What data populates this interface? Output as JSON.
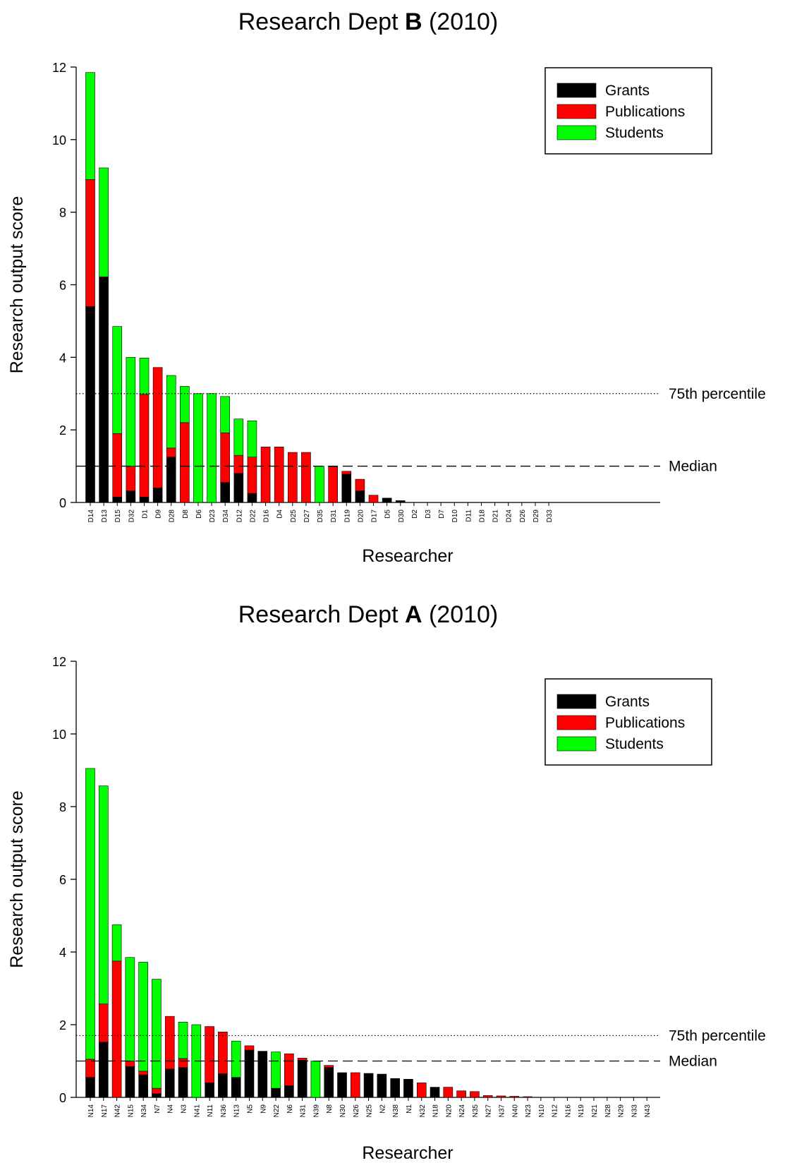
{
  "colors": {
    "grants": "#000000",
    "publications": "#ff0000",
    "students": "#00ff00",
    "background": "#ffffff"
  },
  "chart_data": [
    {
      "type": "bar",
      "stacked": true,
      "title": "Research Dept B (2010)",
      "title_parts": {
        "prefix": "Research Dept ",
        "letter": "B",
        "suffix": " (2010)"
      },
      "xlabel": "Researcher",
      "ylabel": "Research output score",
      "ylim": [
        0,
        12
      ],
      "yticks": [
        0,
        2,
        4,
        6,
        8,
        10,
        12
      ],
      "grid": false,
      "legend_position": "top-right",
      "categories": [
        "D14",
        "D13",
        "D15",
        "D32",
        "D1",
        "D9",
        "D28",
        "D8",
        "D6",
        "D23",
        "D34",
        "D12",
        "D22",
        "D16",
        "D4",
        "D25",
        "D27",
        "D35",
        "D31",
        "D19",
        "D20",
        "D17",
        "D5",
        "D30",
        "D2",
        "D3",
        "D7",
        "D10",
        "D11",
        "D18",
        "D21",
        "D24",
        "D26",
        "D29",
        "D33"
      ],
      "series": [
        {
          "name": "Grants",
          "color_key": "grants",
          "values": [
            5.4,
            6.2,
            0.15,
            0.32,
            0.15,
            0.4,
            1.25,
            0,
            0,
            0,
            0.55,
            0.8,
            0.25,
            0,
            0,
            0,
            0,
            0,
            0,
            0.78,
            0.32,
            0,
            0.12,
            0.05,
            0,
            0,
            0,
            0,
            0,
            0,
            0,
            0,
            0,
            0,
            0
          ]
        },
        {
          "name": "Publications",
          "color_key": "publications",
          "values": [
            3.5,
            0.02,
            1.75,
            0.68,
            2.83,
            3.32,
            0.25,
            2.2,
            0,
            0,
            1.37,
            0.5,
            1.0,
            1.53,
            1.53,
            1.38,
            1.38,
            0,
            0.98,
            0.08,
            0.32,
            0.2,
            0,
            0,
            0,
            0,
            0,
            0,
            0,
            0,
            0,
            0,
            0,
            0,
            0
          ]
        },
        {
          "name": "Students",
          "color_key": "students",
          "values": [
            2.95,
            3.0,
            2.95,
            3.0,
            1.0,
            0,
            2.0,
            1.0,
            3.0,
            3.0,
            1.0,
            1.0,
            1.0,
            0,
            0,
            0,
            0,
            1.0,
            0,
            0,
            0,
            0,
            0,
            0,
            0,
            0,
            0,
            0,
            0,
            0,
            0,
            0,
            0,
            0,
            0
          ]
        }
      ],
      "reference_lines": [
        {
          "label": "75th percentile",
          "value": 3.0,
          "style": "dotted"
        },
        {
          "label": "Median",
          "value": 1.0,
          "style": "dashed"
        }
      ]
    },
    {
      "type": "bar",
      "stacked": true,
      "title": "Research Dept A (2010)",
      "title_parts": {
        "prefix": "Research Dept ",
        "letter": "A",
        "suffix": " (2010)"
      },
      "xlabel": "Researcher",
      "ylabel": "Research output score",
      "ylim": [
        0,
        12
      ],
      "yticks": [
        0,
        2,
        4,
        6,
        8,
        10,
        12
      ],
      "grid": false,
      "legend_position": "top-right",
      "categories": [
        "N14",
        "N17",
        "N42",
        "N15",
        "N34",
        "N7",
        "N4",
        "N3",
        "N41",
        "N11",
        "N36",
        "N13",
        "N5",
        "N9",
        "N22",
        "N6",
        "N31",
        "N39",
        "N8",
        "N30",
        "N26",
        "N25",
        "N2",
        "N38",
        "N1",
        "N32",
        "N18",
        "N20",
        "N24",
        "N35",
        "N27",
        "N37",
        "N40",
        "N23",
        "N10",
        "N12",
        "N16",
        "N19",
        "N21",
        "N28",
        "N29",
        "N33",
        "N43"
      ],
      "series": [
        {
          "name": "Grants",
          "color_key": "grants",
          "values": [
            0.55,
            1.52,
            0,
            0.85,
            0.62,
            0.1,
            0.78,
            0.82,
            0,
            0.4,
            0.65,
            0.55,
            1.3,
            1.27,
            0.25,
            0.32,
            1.02,
            0,
            0.82,
            0.68,
            0,
            0.66,
            0.64,
            0.52,
            0.5,
            0,
            0.28,
            0,
            0,
            0,
            0,
            0,
            0,
            0,
            0,
            0,
            0,
            0,
            0,
            0,
            0,
            0,
            0
          ]
        },
        {
          "name": "Publications",
          "color_key": "publications",
          "values": [
            0.5,
            1.05,
            3.75,
            0.15,
            0.1,
            0.15,
            1.45,
            0.25,
            0,
            1.55,
            1.15,
            0,
            0.12,
            0,
            0,
            0.88,
            0.06,
            0,
            0.06,
            0,
            0.68,
            0,
            0,
            0,
            0,
            0.4,
            0,
            0.28,
            0.18,
            0.16,
            0.05,
            0.04,
            0.03,
            0.02,
            0,
            0,
            0,
            0,
            0,
            0,
            0,
            0,
            0
          ]
        },
        {
          "name": "Students",
          "color_key": "students",
          "values": [
            8.0,
            6.0,
            1.0,
            2.85,
            3.0,
            3.0,
            0,
            1.0,
            2.0,
            0,
            0,
            1.0,
            0,
            0,
            1.0,
            0,
            0,
            1.0,
            0,
            0,
            0,
            0,
            0,
            0,
            0,
            0,
            0,
            0,
            0,
            0,
            0,
            0,
            0,
            0,
            0,
            0,
            0,
            0,
            0,
            0,
            0,
            0,
            0
          ]
        }
      ],
      "reference_lines": [
        {
          "label": "75th percentile",
          "value": 1.7,
          "style": "dotted"
        },
        {
          "label": "Median",
          "value": 1.0,
          "style": "dashed"
        }
      ]
    }
  ]
}
